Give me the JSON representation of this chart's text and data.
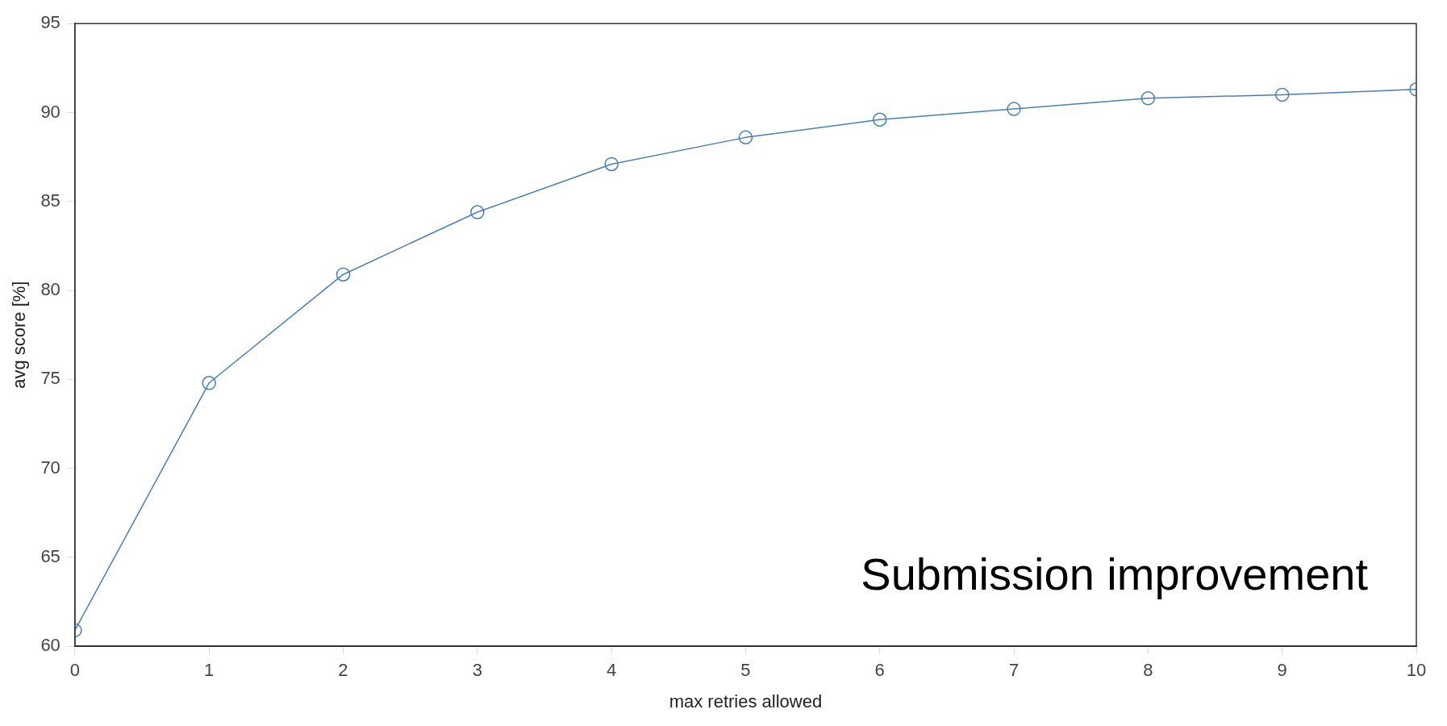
{
  "chart_data": {
    "type": "line",
    "xlabel": "max retries allowed",
    "ylabel": "avg score [%]",
    "annotations": [
      "Submission improvement"
    ],
    "x": [
      0,
      1,
      2,
      3,
      4,
      5,
      6,
      7,
      8,
      9,
      10
    ],
    "series": [
      {
        "color": "#4a7ebb",
        "values": [
          60.9,
          74.8,
          80.9,
          84.4,
          87.1,
          88.6,
          89.6,
          90.2,
          90.8,
          91.0,
          91.3
        ]
      }
    ],
    "xlim": [
      0,
      10
    ],
    "xticks": [
      0,
      1,
      2,
      3,
      4,
      5,
      6,
      7,
      8,
      9,
      10
    ],
    "ylim": [
      60,
      95
    ],
    "yticks": [
      60,
      65,
      70,
      75,
      80,
      85,
      90,
      95
    ],
    "grid": false,
    "legend": false,
    "marker": "circle",
    "line_style": "solid"
  }
}
